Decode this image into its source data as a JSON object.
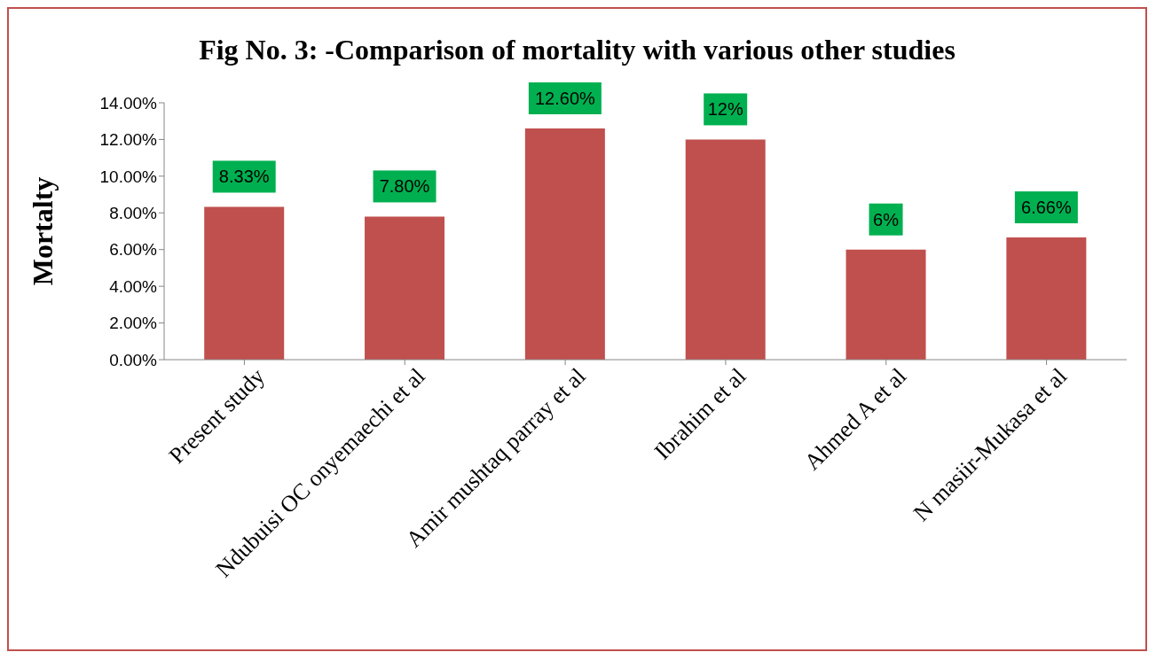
{
  "chart_data": {
    "type": "bar",
    "title": "Fig No. 3: -Comparison of mortality  with  various other studies",
    "ylabel": "Mortalty",
    "categories": [
      "Present study",
      "Ndubuisi OC onyemaechi et al",
      "Amir mushtaq parray et al",
      "Ibrahim et al",
      "Ahmed A et al",
      "N masiir-Mukasa et al"
    ],
    "values": [
      8.33,
      7.8,
      12.6,
      12,
      6,
      6.66
    ],
    "value_labels": [
      "8.33%",
      "7.80%",
      "12.60%",
      "12%",
      "6%",
      "6.66%"
    ],
    "color": "#c0504d",
    "ylim": [
      0,
      14
    ],
    "yticks": [
      {
        "value": 0,
        "label": "0.00%"
      },
      {
        "value": 2,
        "label": "2.00%"
      },
      {
        "value": 4,
        "label": "4.00%"
      },
      {
        "value": 6,
        "label": "6.00%"
      },
      {
        "value": 8,
        "label": "8.00%"
      },
      {
        "value": 10,
        "label": "10.00%"
      },
      {
        "value": 12,
        "label": "12.00%"
      },
      {
        "value": 14,
        "label": "14.00%"
      }
    ],
    "grid": false,
    "legend": false
  }
}
